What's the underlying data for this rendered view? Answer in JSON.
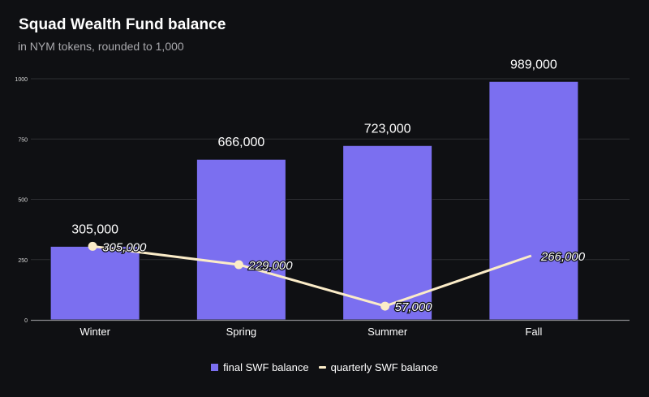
{
  "chart_data": {
    "type": "bar",
    "title": "Squad Wealth Fund balance",
    "subtitle": "in NYM tokens, rounded to 1,000",
    "categories": [
      "Winter",
      "Spring",
      "Summer",
      "Fall"
    ],
    "series": [
      {
        "name": "final SWF balance",
        "type": "bar",
        "color": "#7b6ff0",
        "values": [
          305000,
          666000,
          723000,
          989000
        ],
        "labels": [
          "305,000",
          "666,000",
          "723,000",
          "989,000"
        ]
      },
      {
        "name": "quarterly SWF balance",
        "type": "line",
        "color": "#fbecc8",
        "values": [
          305000,
          229000,
          57000,
          266000
        ],
        "labels": [
          "305,000",
          "229,000",
          "57,000",
          "266,000"
        ],
        "markers": [
          true,
          true,
          true,
          false
        ]
      }
    ],
    "yticks": [
      0,
      250,
      500,
      750,
      1000
    ],
    "ytick_labels": [
      "0",
      "250",
      "500",
      "750",
      "1000"
    ],
    "ylim": [
      0,
      1000000
    ],
    "xlabel": "",
    "ylabel": "",
    "grid": true,
    "legend_position": "bottom"
  }
}
